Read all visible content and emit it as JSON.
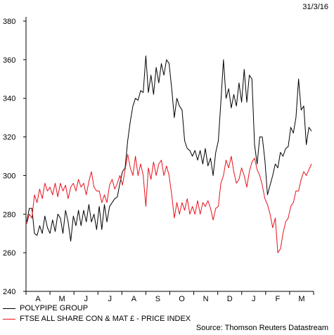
{
  "date_stamp": "31/3/16",
  "source": "Source: Thomson Reuters Datastream",
  "chart_data": {
    "type": "line",
    "title": "",
    "xlabel": "",
    "ylabel": "",
    "ylim": [
      240,
      380
    ],
    "y_ticks": [
      240,
      260,
      280,
      300,
      320,
      340,
      360,
      380
    ],
    "month_labels": [
      "A",
      "M",
      "J",
      "J",
      "A",
      "S",
      "O",
      "N",
      "D",
      "J",
      "F",
      "M"
    ],
    "grid": false,
    "legend_position": "bottom-left",
    "series": [
      {
        "name": "POLYPIPE GROUP",
        "color": "#000000",
        "points": [
          [
            0,
            276
          ],
          [
            2,
            283
          ],
          [
            4,
            283
          ],
          [
            6,
            270
          ],
          [
            8,
            269
          ],
          [
            10,
            274
          ],
          [
            12,
            270
          ],
          [
            14,
            279
          ],
          [
            16,
            273
          ],
          [
            18,
            270
          ],
          [
            20,
            277
          ],
          [
            22,
            271
          ],
          [
            24,
            280
          ],
          [
            26,
            278
          ],
          [
            28,
            270
          ],
          [
            30,
            282
          ],
          [
            32,
            276
          ],
          [
            34,
            266
          ],
          [
            36,
            279
          ],
          [
            38,
            274
          ],
          [
            40,
            282
          ],
          [
            42,
            274
          ],
          [
            44,
            282
          ],
          [
            46,
            276
          ],
          [
            48,
            285
          ],
          [
            50,
            276
          ],
          [
            52,
            280
          ],
          [
            54,
            272
          ],
          [
            56,
            284
          ],
          [
            58,
            272
          ],
          [
            60,
            285
          ],
          [
            62,
            276
          ],
          [
            64,
            284
          ],
          [
            66,
            286
          ],
          [
            68,
            288
          ],
          [
            70,
            289
          ],
          [
            72,
            296
          ],
          [
            74,
            302
          ],
          [
            76,
            304
          ],
          [
            78,
            318
          ],
          [
            80,
            328
          ],
          [
            82,
            336
          ],
          [
            84,
            340
          ],
          [
            86,
            339
          ],
          [
            88,
            344
          ],
          [
            90,
            343
          ],
          [
            92,
            362
          ],
          [
            94,
            343
          ],
          [
            96,
            352
          ],
          [
            98,
            342
          ],
          [
            100,
            356
          ],
          [
            102,
            348
          ],
          [
            104,
            358
          ],
          [
            106,
            352
          ],
          [
            108,
            360
          ],
          [
            110,
            358
          ],
          [
            112,
            345
          ],
          [
            114,
            330
          ],
          [
            116,
            340
          ],
          [
            118,
            336
          ],
          [
            120,
            334
          ],
          [
            122,
            318
          ],
          [
            124,
            314
          ],
          [
            126,
            313
          ],
          [
            128,
            310
          ],
          [
            130,
            313
          ],
          [
            132,
            308
          ],
          [
            134,
            313
          ],
          [
            136,
            306
          ],
          [
            138,
            314
          ],
          [
            140,
            305
          ],
          [
            142,
            309
          ],
          [
            144,
            300
          ],
          [
            146,
            312
          ],
          [
            148,
            318
          ],
          [
            150,
            338
          ],
          [
            152,
            360
          ],
          [
            154,
            340
          ],
          [
            156,
            345
          ],
          [
            158,
            335
          ],
          [
            160,
            342
          ],
          [
            162,
            336
          ],
          [
            164,
            348
          ],
          [
            166,
            338
          ],
          [
            168,
            355
          ],
          [
            170,
            338
          ],
          [
            172,
            352
          ],
          [
            174,
            350
          ],
          [
            176,
            316
          ],
          [
            178,
            306
          ],
          [
            180,
            320
          ],
          [
            182,
            320
          ],
          [
            184,
            308
          ],
          [
            186,
            290
          ],
          [
            188,
            295
          ],
          [
            190,
            300
          ],
          [
            192,
            306
          ],
          [
            194,
            304
          ],
          [
            196,
            312
          ],
          [
            198,
            310
          ],
          [
            200,
            314
          ],
          [
            202,
            315
          ],
          [
            204,
            325
          ],
          [
            206,
            322
          ],
          [
            208,
            330
          ],
          [
            210,
            350
          ],
          [
            212,
            334
          ],
          [
            214,
            336
          ],
          [
            216,
            316
          ],
          [
            218,
            325
          ],
          [
            220,
            323
          ]
        ]
      },
      {
        "name": "FTSE ALL SHARE CON & MAT £ - PRICE INDEX",
        "color": "#e8101c",
        "points": [
          [
            0,
            275
          ],
          [
            2,
            280
          ],
          [
            4,
            278
          ],
          [
            6,
            290
          ],
          [
            8,
            286
          ],
          [
            10,
            293
          ],
          [
            12,
            288
          ],
          [
            14,
            296
          ],
          [
            16,
            292
          ],
          [
            18,
            294
          ],
          [
            20,
            290
          ],
          [
            22,
            296
          ],
          [
            24,
            289
          ],
          [
            26,
            296
          ],
          [
            28,
            292
          ],
          [
            30,
            295
          ],
          [
            32,
            288
          ],
          [
            34,
            294
          ],
          [
            36,
            296
          ],
          [
            38,
            292
          ],
          [
            40,
            298
          ],
          [
            42,
            294
          ],
          [
            44,
            296
          ],
          [
            46,
            290
          ],
          [
            48,
            297
          ],
          [
            50,
            302
          ],
          [
            52,
            294
          ],
          [
            54,
            292
          ],
          [
            56,
            292
          ],
          [
            58,
            286
          ],
          [
            60,
            290
          ],
          [
            62,
            286
          ],
          [
            64,
            295
          ],
          [
            66,
            298
          ],
          [
            68,
            293
          ],
          [
            70,
            296
          ],
          [
            72,
            300
          ],
          [
            74,
            295
          ],
          [
            76,
            303
          ],
          [
            78,
            311
          ],
          [
            80,
            304
          ],
          [
            82,
            300
          ],
          [
            84,
            310
          ],
          [
            86,
            300
          ],
          [
            88,
            306
          ],
          [
            90,
            300
          ],
          [
            92,
            284
          ],
          [
            94,
            304
          ],
          [
            96,
            298
          ],
          [
            98,
            307
          ],
          [
            100,
            300
          ],
          [
            102,
            306
          ],
          [
            104,
            308
          ],
          [
            106,
            300
          ],
          [
            108,
            305
          ],
          [
            110,
            300
          ],
          [
            112,
            290
          ],
          [
            114,
            278
          ],
          [
            116,
            286
          ],
          [
            118,
            280
          ],
          [
            120,
            286
          ],
          [
            122,
            282
          ],
          [
            124,
            288
          ],
          [
            126,
            280
          ],
          [
            128,
            284
          ],
          [
            130,
            280
          ],
          [
            132,
            287
          ],
          [
            134,
            280
          ],
          [
            136,
            286
          ],
          [
            138,
            284
          ],
          [
            140,
            287
          ],
          [
            142,
            283
          ],
          [
            144,
            277
          ],
          [
            146,
            283
          ],
          [
            148,
            284
          ],
          [
            150,
            296
          ],
          [
            152,
            300
          ],
          [
            154,
            308
          ],
          [
            156,
            304
          ],
          [
            158,
            310
          ],
          [
            160,
            302
          ],
          [
            162,
            296
          ],
          [
            164,
            298
          ],
          [
            166,
            304
          ],
          [
            168,
            300
          ],
          [
            170,
            294
          ],
          [
            172,
            302
          ],
          [
            174,
            307
          ],
          [
            176,
            309
          ],
          [
            178,
            303
          ],
          [
            180,
            300
          ],
          [
            182,
            295
          ],
          [
            184,
            288
          ],
          [
            186,
            285
          ],
          [
            188,
            280
          ],
          [
            190,
            273
          ],
          [
            192,
            278
          ],
          [
            194,
            260
          ],
          [
            196,
            262
          ],
          [
            198,
            270
          ],
          [
            200,
            276
          ],
          [
            202,
            278
          ],
          [
            204,
            284
          ],
          [
            206,
            286
          ],
          [
            208,
            292
          ],
          [
            210,
            292
          ],
          [
            212,
            298
          ],
          [
            214,
            302
          ],
          [
            216,
            300
          ],
          [
            218,
            303
          ],
          [
            220,
            306
          ]
        ]
      }
    ]
  }
}
